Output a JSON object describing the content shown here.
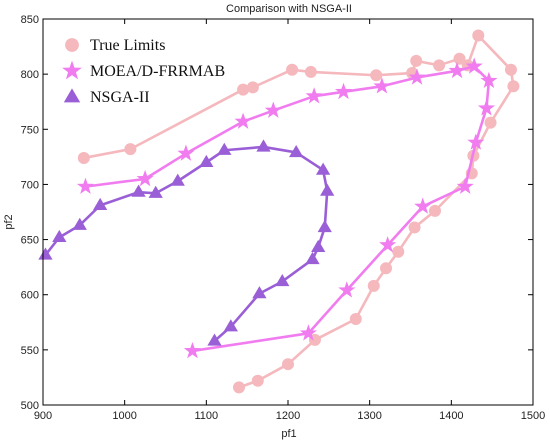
{
  "chart_data": {
    "type": "line",
    "title": "Comparison with NSGA-II",
    "xlabel": "pf1",
    "ylabel": "pf2",
    "xlim": [
      900,
      1500
    ],
    "ylim": [
      500,
      850
    ],
    "xticks": [
      900,
      1000,
      1100,
      1200,
      1300,
      1400,
      1500
    ],
    "yticks": [
      500,
      550,
      600,
      650,
      700,
      750,
      800,
      850
    ],
    "grid": false,
    "legend_position": "top-left",
    "series": [
      {
        "name": "True Limits",
        "color": "#f4b8bd",
        "marker": "circle",
        "points": [
          [
            1140,
            516
          ],
          [
            1163,
            522
          ],
          [
            1200,
            537
          ],
          [
            1233,
            559
          ],
          [
            1283,
            578
          ],
          [
            1305,
            608
          ],
          [
            1320,
            624
          ],
          [
            1335,
            639
          ],
          [
            1355,
            661
          ],
          [
            1380,
            676
          ],
          [
            1425,
            710
          ],
          [
            1427,
            726
          ],
          [
            1448,
            756
          ],
          [
            1476,
            789
          ],
          [
            1473,
            804
          ],
          [
            1433,
            835
          ],
          [
            1420,
            808
          ],
          [
            1410,
            814
          ],
          [
            1385,
            808
          ],
          [
            1357,
            812
          ],
          [
            1352,
            801
          ],
          [
            1308,
            799
          ],
          [
            1228,
            802
          ],
          [
            1205,
            804
          ],
          [
            1157,
            788
          ],
          [
            1145,
            786
          ],
          [
            1007,
            732
          ],
          [
            950,
            724
          ]
        ]
      },
      {
        "name": "MOEA/D-FRRMAB",
        "color": "#f07cf0",
        "marker": "star",
        "points": [
          [
            1083,
            549
          ],
          [
            1225,
            565
          ],
          [
            1272,
            604
          ],
          [
            1322,
            645
          ],
          [
            1365,
            680
          ],
          [
            1417,
            698
          ],
          [
            1430,
            738
          ],
          [
            1443,
            769
          ],
          [
            1446,
            794
          ],
          [
            1428,
            807
          ],
          [
            1407,
            803
          ],
          [
            1358,
            797
          ],
          [
            1315,
            789
          ],
          [
            1268,
            784
          ],
          [
            1232,
            780
          ],
          [
            1182,
            767
          ],
          [
            1145,
            757
          ],
          [
            1075,
            728
          ],
          [
            1025,
            705
          ],
          [
            952,
            698
          ]
        ]
      },
      {
        "name": "NSGA-II",
        "color": "#9a5fd6",
        "marker": "triangle",
        "points": [
          [
            1110,
            558
          ],
          [
            1130,
            571
          ],
          [
            1165,
            601
          ],
          [
            1193,
            612
          ],
          [
            1230,
            632
          ],
          [
            1237,
            643
          ],
          [
            1245,
            661
          ],
          [
            1248,
            694
          ],
          [
            1243,
            713
          ],
          [
            1210,
            729
          ],
          [
            1170,
            734
          ],
          [
            1122,
            731
          ],
          [
            1100,
            720
          ],
          [
            1065,
            703
          ],
          [
            1038,
            692
          ],
          [
            1017,
            693
          ],
          [
            970,
            681
          ],
          [
            945,
            663
          ],
          [
            920,
            652
          ],
          [
            903,
            636
          ]
        ]
      }
    ]
  }
}
